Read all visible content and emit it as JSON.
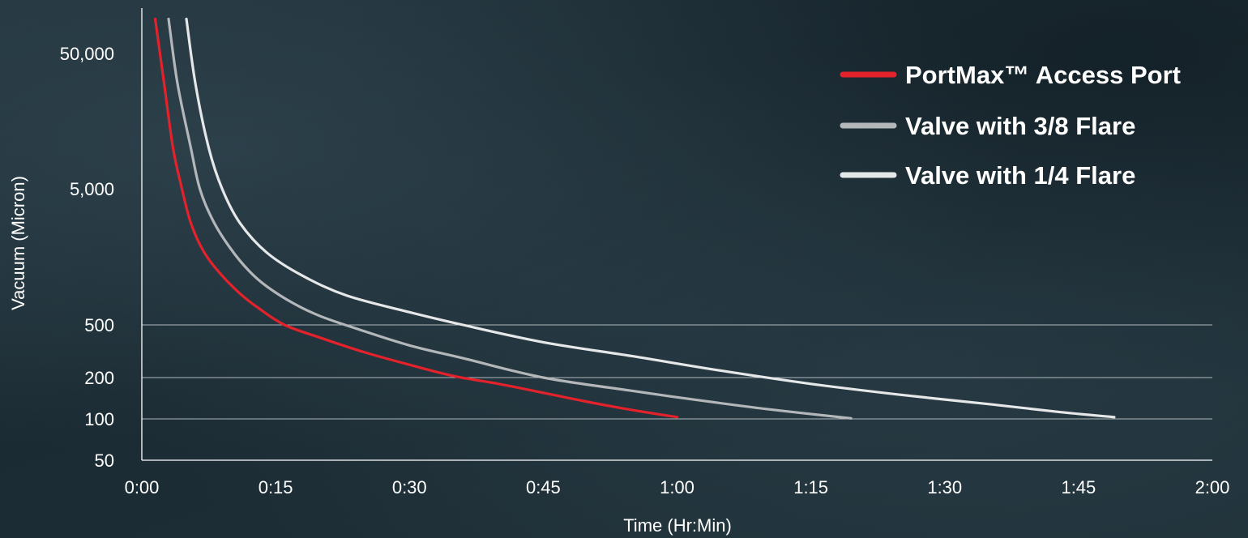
{
  "chart_data": {
    "type": "line",
    "xlabel": "Time (Hr:Min)",
    "ylabel": "Vacuum (Micron)",
    "x_unit": "minutes",
    "x_ticks": [
      0,
      15,
      30,
      45,
      60,
      75,
      90,
      105,
      120
    ],
    "x_tick_labels": [
      "0:00",
      "0:15",
      "0:30",
      "0:45",
      "1:00",
      "1:15",
      "1:30",
      "1:45",
      "2:00"
    ],
    "xlim": [
      0,
      120
    ],
    "y_scale": "log",
    "ylim": [
      50,
      90000
    ],
    "y_ticks": [
      50,
      100,
      200,
      500,
      5000,
      50000
    ],
    "y_tick_labels": [
      "50",
      "100",
      "200",
      "500",
      "5,000",
      "50,000"
    ],
    "gridlines_y": [
      100,
      200,
      500
    ],
    "legend_position": "top-right",
    "series": [
      {
        "name": "PortMax™ Access Port",
        "color": "#e3222b",
        "points": [
          [
            1.5,
            90000
          ],
          [
            2.5,
            30000
          ],
          [
            3.5,
            10000
          ],
          [
            4.5,
            5000
          ],
          [
            5.5,
            2800
          ],
          [
            7,
            1700
          ],
          [
            9,
            1150
          ],
          [
            11,
            850
          ],
          [
            13,
            670
          ],
          [
            16,
            500
          ],
          [
            20,
            400
          ],
          [
            25,
            310
          ],
          [
            30,
            250
          ],
          [
            35,
            205
          ],
          [
            40,
            180
          ],
          [
            45,
            155
          ],
          [
            50,
            133
          ],
          [
            55,
            116
          ],
          [
            60,
            103
          ]
        ]
      },
      {
        "name": "Valve with 3/8 Flare",
        "color": "#b4b7b9",
        "points": [
          [
            3,
            90000
          ],
          [
            4,
            30000
          ],
          [
            5.5,
            10000
          ],
          [
            6.5,
            5000
          ],
          [
            8,
            2900
          ],
          [
            10,
            1800
          ],
          [
            12,
            1250
          ],
          [
            14,
            960
          ],
          [
            17,
            720
          ],
          [
            20,
            580
          ],
          [
            24,
            470
          ],
          [
            30,
            350
          ],
          [
            36,
            280
          ],
          [
            45,
            200
          ],
          [
            55,
            160
          ],
          [
            62,
            138
          ],
          [
            70,
            118
          ],
          [
            79.5,
            101
          ]
        ]
      },
      {
        "name": "Valve with 1/4 Flare",
        "color": "#e6e7e8",
        "points": [
          [
            5,
            90000
          ],
          [
            6,
            30000
          ],
          [
            7.5,
            10000
          ],
          [
            9,
            5000
          ],
          [
            11,
            2800
          ],
          [
            14,
            1700
          ],
          [
            18,
            1150
          ],
          [
            23,
            820
          ],
          [
            30,
            620
          ],
          [
            36,
            500
          ],
          [
            45,
            370
          ],
          [
            55,
            290
          ],
          [
            65,
            225
          ],
          [
            75,
            180
          ],
          [
            85,
            150
          ],
          [
            95,
            128
          ],
          [
            103,
            112
          ],
          [
            109,
            103
          ]
        ]
      }
    ]
  }
}
